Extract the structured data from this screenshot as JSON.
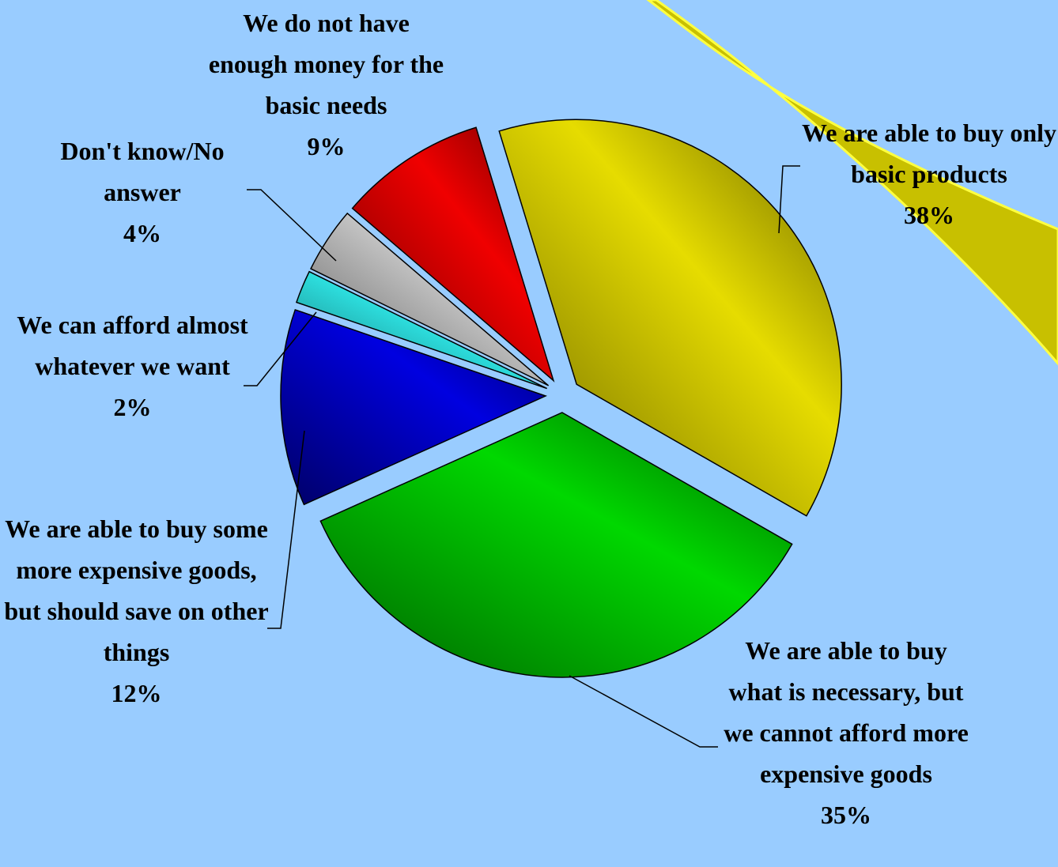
{
  "chart_data": {
    "type": "pie",
    "categories": [
      "We are able to buy only basic products",
      "We are able to buy what is necessary, but we cannot afford more expensive goods",
      "We are able to buy some more expensive goods, but should save on other things",
      "We can afford almost whatever we want",
      "Don't know/No answer",
      "We do not have enough money for the basic needs"
    ],
    "values": [
      38,
      35,
      12,
      2,
      4,
      9
    ],
    "value_labels": [
      "38%",
      "35%",
      "12%",
      "2%",
      "4%",
      "9%"
    ],
    "colors": [
      "#e6dc00",
      "#00d800",
      "#0000e0",
      "#30f0f0",
      "#c8c8c8",
      "#f00000"
    ]
  }
}
